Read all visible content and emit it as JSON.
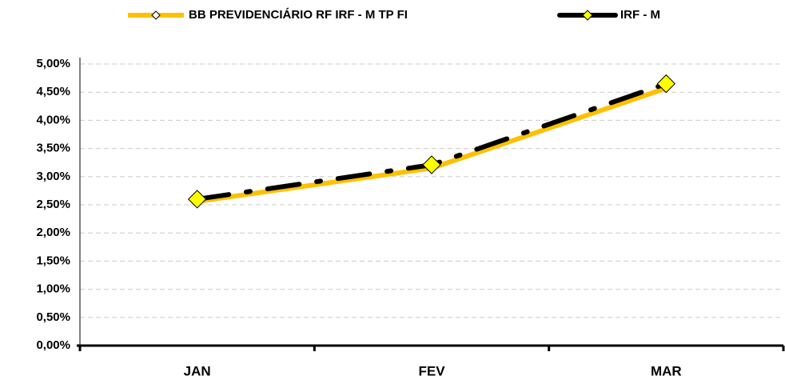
{
  "chart_data": {
    "type": "line",
    "categories": [
      "JAN",
      "FEV",
      "MAR"
    ],
    "series": [
      {
        "name": "BB PREVIDENCIÁRIO RF IRF - M TP FI",
        "color": "#FFC000",
        "values": [
          2.56,
          3.15,
          4.57
        ]
      },
      {
        "name": "IRF - M",
        "color": "#000000",
        "marker_color": "#FFFF00",
        "values": [
          2.6,
          3.21,
          4.65
        ]
      }
    ],
    "ylim": [
      0,
      5
    ],
    "yticks": [
      {
        "value": 0,
        "label": "0,00%"
      },
      {
        "value": 0.5,
        "label": "0,50%"
      },
      {
        "value": 1,
        "label": "1,00%"
      },
      {
        "value": 1.5,
        "label": "1,50%"
      },
      {
        "value": 2,
        "label": "2,00%"
      },
      {
        "value": 2.5,
        "label": "2,50%"
      },
      {
        "value": 3,
        "label": "3,00%"
      },
      {
        "value": 3.5,
        "label": "3,50%"
      },
      {
        "value": 4,
        "label": "4,00%"
      },
      {
        "value": 4.5,
        "label": "4,50%"
      },
      {
        "value": 5,
        "label": "5,00%"
      }
    ],
    "grid": true,
    "legend": "top"
  }
}
